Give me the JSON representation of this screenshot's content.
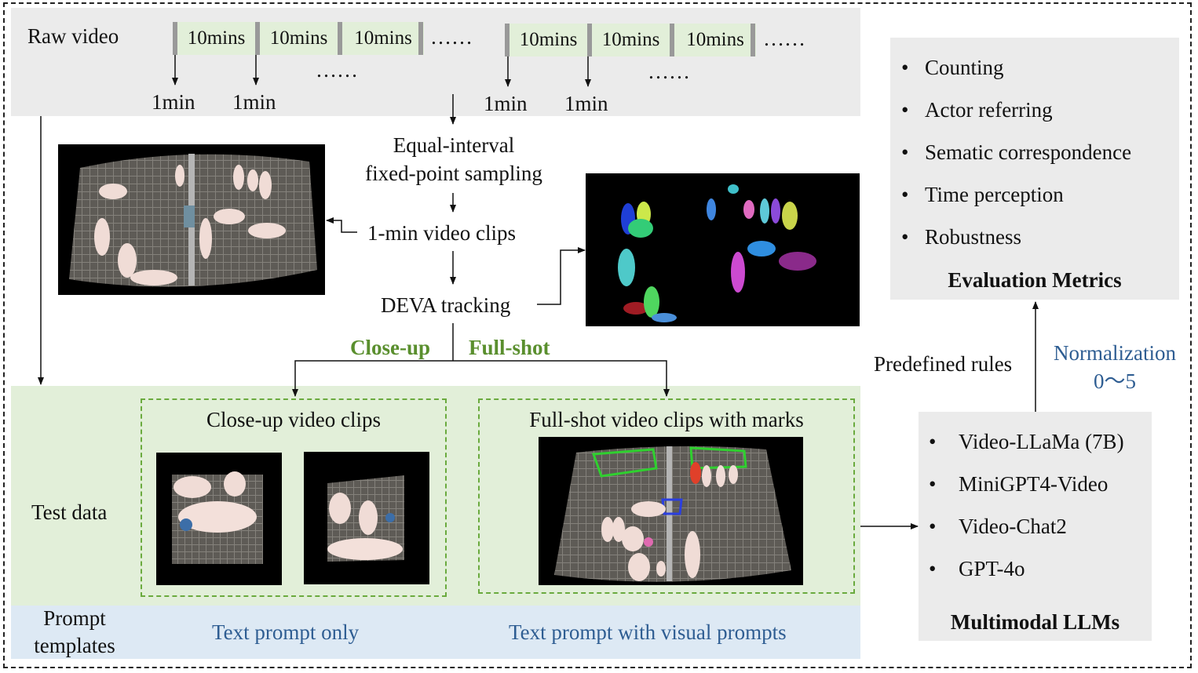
{
  "raw_video": {
    "label": "Raw video",
    "segments": [
      "10mins",
      "10mins",
      "10mins",
      "10mins",
      "10mins",
      "10mins"
    ],
    "ellipsis": "……",
    "samples": [
      "1min",
      "1min",
      "1min",
      "1min"
    ]
  },
  "pipeline": {
    "sampling_line1": "Equal-interval",
    "sampling_line2": "fixed-point sampling",
    "clips": "1-min video clips",
    "tracking": "DEVA tracking",
    "close_up": "Close-up",
    "full_shot": "Full-shot"
  },
  "test_data": {
    "label": "Test data",
    "closeup_title": "Close-up video clips",
    "fullshot_title": "Full-shot video clips with marks"
  },
  "prompts": {
    "label_line1": "Prompt",
    "label_line2": "templates",
    "text_only": "Text prompt only",
    "text_visual": "Text prompt with visual prompts"
  },
  "evaluation": {
    "items": [
      "Counting",
      "Actor referring",
      "Sematic correspondence",
      "Time perception",
      "Robustness"
    ],
    "title": "Evaluation Metrics"
  },
  "predefined_rules": "Predefined rules",
  "normalization": {
    "line1": "Normalization",
    "line2": "0～5"
  },
  "llms": {
    "items": [
      "Video-LLaMa (7B)",
      "MiniGPT4-Video",
      "Video-Chat2",
      "GPT-4o"
    ],
    "title": "Multimodal LLMs"
  },
  "colors": {
    "green_label": "#5a8f2e",
    "blue_label": "#2e5d92",
    "dash_green": "#6aaa3e"
  }
}
